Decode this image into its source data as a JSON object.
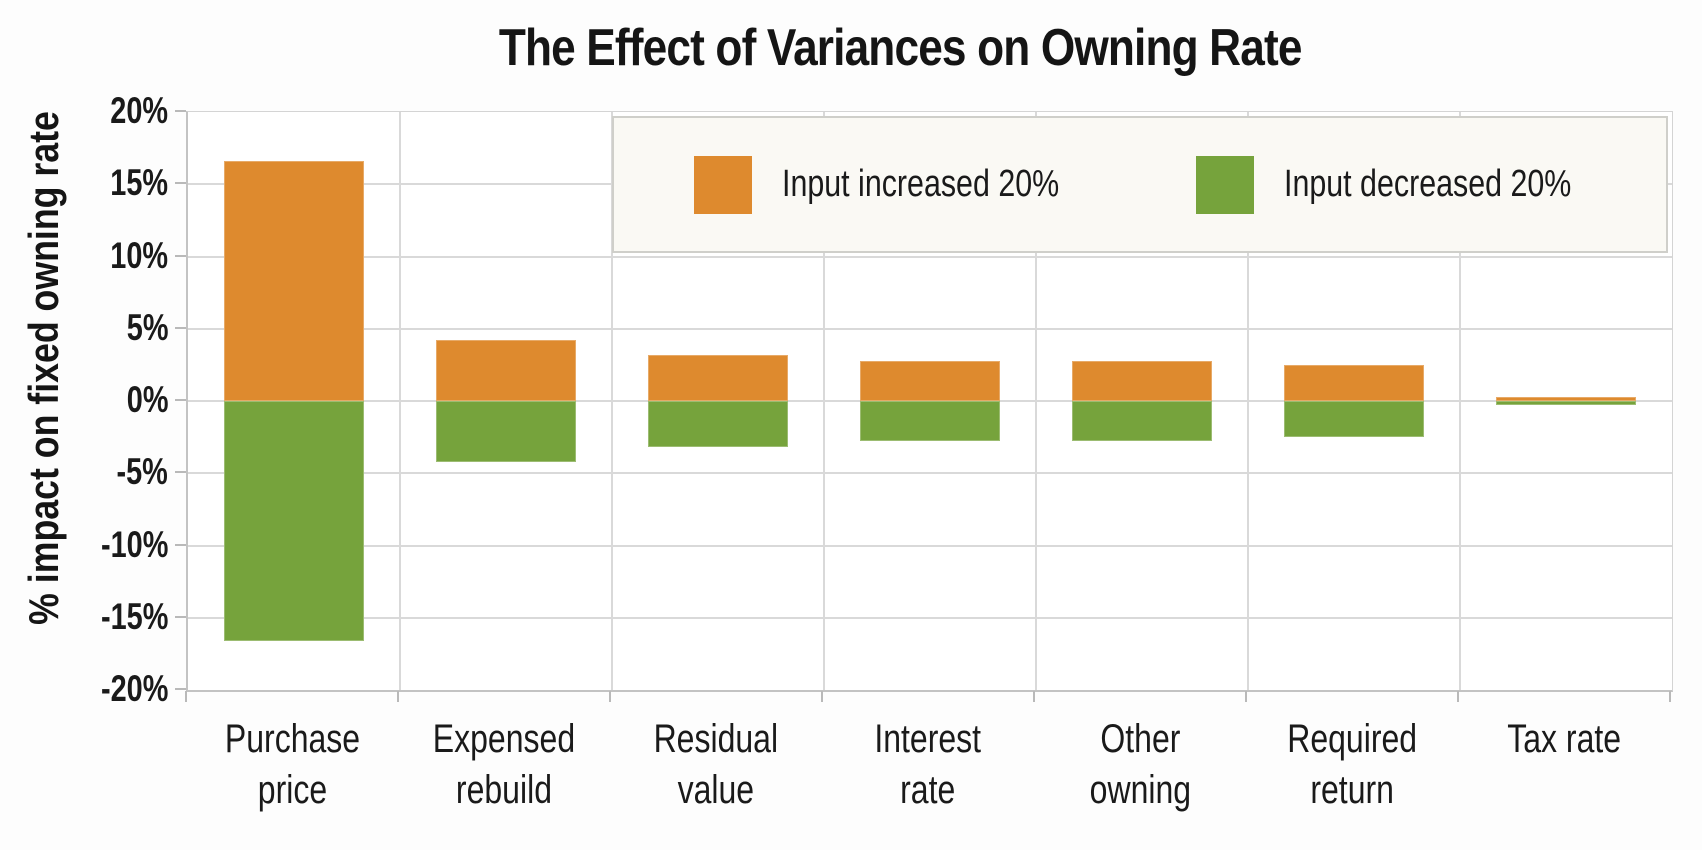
{
  "title": "The Effect of Variances on Owning Rate",
  "y_axis": {
    "label": "% impact on fixed owning rate",
    "ticks": [
      "20%",
      "15%",
      "10%",
      "5%",
      "0%",
      "-5%",
      "-10%",
      "-15%",
      "-20%"
    ],
    "max": 20,
    "min": -20,
    "step": 5
  },
  "legend": {
    "items": [
      {
        "label": "Input increased 20%",
        "color": "#de8a2e"
      },
      {
        "label": "Input decreased 20%",
        "color": "#76a33c"
      }
    ]
  },
  "colors": {
    "increase": "#de8a2e",
    "decrease": "#76a33c",
    "gridline": "#d9d9d9",
    "axis": "#c3c3c3",
    "legend_bg": "#faf9f4",
    "text": "#1a1a1a"
  },
  "chart_data": {
    "type": "bar",
    "title": "The Effect of Variances on Owning Rate",
    "xlabel": "",
    "ylabel": "% impact on fixed owning rate",
    "ylim": [
      -20,
      20
    ],
    "grid": true,
    "legend_position": "top-right-inside",
    "categories": [
      "Purchase price",
      "Expensed rebuild",
      "Residual value",
      "Interest rate",
      "Other owning",
      "Required return",
      "Tax rate"
    ],
    "category_lines": [
      [
        "Purchase",
        "price"
      ],
      [
        "Expensed",
        "rebuild"
      ],
      [
        "Residual",
        "value"
      ],
      [
        "Interest",
        "rate"
      ],
      [
        "Other",
        "owning"
      ],
      [
        "Required",
        "return"
      ],
      [
        "Tax rate"
      ]
    ],
    "series": [
      {
        "name": "Input increased 20%",
        "color": "#de8a2e",
        "values": [
          16.6,
          4.2,
          3.2,
          2.8,
          2.8,
          2.5,
          0.25
        ]
      },
      {
        "name": "Input decreased 20%",
        "color": "#76a33c",
        "values": [
          -16.6,
          -4.2,
          -3.2,
          -2.8,
          -2.8,
          -2.5,
          -0.25
        ]
      }
    ]
  }
}
